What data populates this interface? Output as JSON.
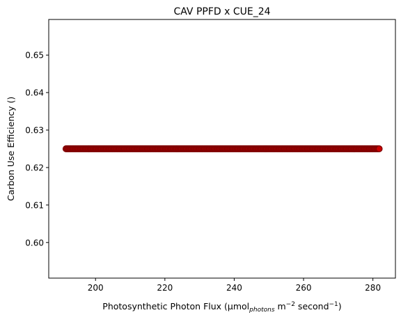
{
  "chart_data": {
    "type": "scatter",
    "title": "CAV PPFD x CUE_24",
    "xlabel": {
      "prefix": "Photosynthetic Photon Flux (µmol",
      "sub": "photons",
      "mid1": " m",
      "sup1": "−2",
      "mid2": " second",
      "sup2": "−1",
      "suffix": ")"
    },
    "ylabel": "Carbon Use Efficiency ()",
    "xlim": [
      186.5,
      286.5
    ],
    "ylim": [
      0.5905,
      0.6595
    ],
    "xticks": [
      200,
      220,
      240,
      260,
      280
    ],
    "yticks": [
      0.6,
      0.61,
      0.62,
      0.63,
      0.64,
      0.65
    ],
    "xtick_labels": [
      "200",
      "220",
      "240",
      "260",
      "280"
    ],
    "ytick_labels": [
      "0.60",
      "0.61",
      "0.62",
      "0.63",
      "0.64",
      "0.65"
    ],
    "series": [
      {
        "x_range": [
          191.5,
          282.0
        ],
        "y": 0.625,
        "marker": "circle",
        "face_color": "#cc0000",
        "edge_color": "#800000"
      }
    ],
    "grid": false
  }
}
